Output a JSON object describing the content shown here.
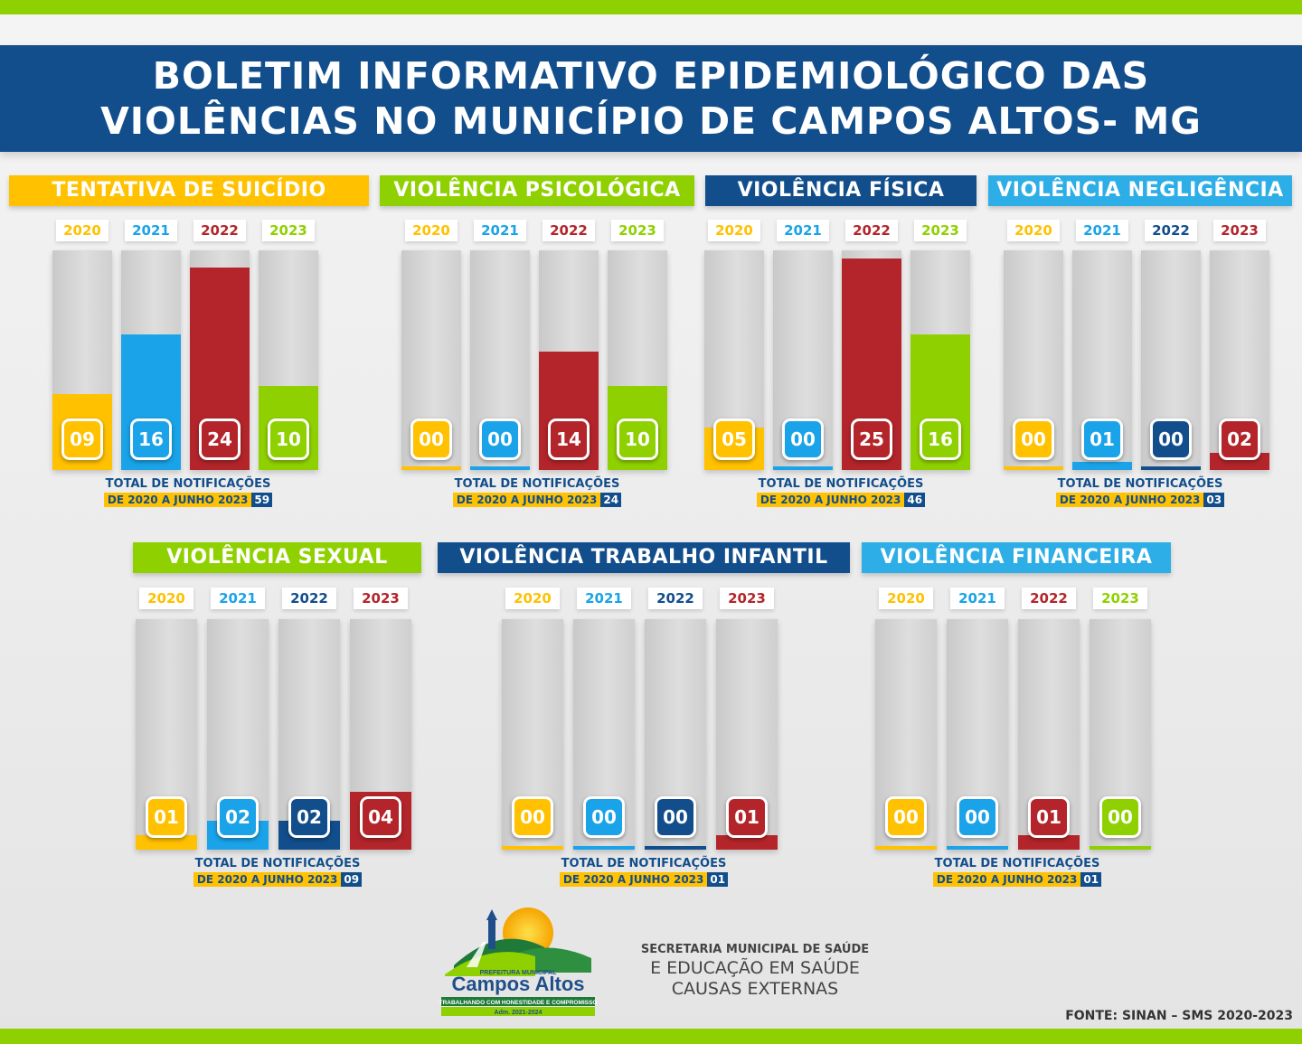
{
  "header": {
    "line1": "BOLETIM INFORMATIVO EPIDEMIOLÓGICO DAS",
    "line2": "VIOLÊNCIAS NO MUNICÍPIO DE CAMPOS ALTOS- MG"
  },
  "colors": {
    "yellow": "#ffc100",
    "blue": "#1aa3e8",
    "red": "#b3252a",
    "green": "#8fd100",
    "navy": "#124e8c",
    "light_blue": "#2eaee6"
  },
  "chart_data": [
    {
      "type": "bar",
      "title": "TENTATIVA DE SUICÍDIO",
      "title_color": "#ffc100",
      "categories": [
        "2020",
        "2021",
        "2022",
        "2023"
      ],
      "category_colors": [
        "#ffc100",
        "#1aa3e8",
        "#b3252a",
        "#8fd100"
      ],
      "values": [
        9,
        16,
        24,
        10
      ],
      "labels": [
        "09",
        "16",
        "24",
        "10"
      ],
      "ylim": [
        0,
        26
      ],
      "total_text": "TOTAL DE NOTIFICAÇÕES",
      "range_text": "DE 2020 A JUNHO 2023",
      "total": "59"
    },
    {
      "type": "bar",
      "title": "VIOLÊNCIA PSICOLÓGICA",
      "title_color": "#8fd100",
      "categories": [
        "2020",
        "2021",
        "2022",
        "2023"
      ],
      "category_colors": [
        "#ffc100",
        "#1aa3e8",
        "#b3252a",
        "#8fd100"
      ],
      "values": [
        0,
        0,
        14,
        10
      ],
      "labels": [
        "00",
        "00",
        "14",
        "10"
      ],
      "ylim": [
        0,
        26
      ],
      "total_text": "TOTAL DE NOTIFICAÇÕES",
      "range_text": "DE 2020 A JUNHO 2023",
      "total": "24"
    },
    {
      "type": "bar",
      "title": "VIOLÊNCIA FÍSICA",
      "title_color": "#124e8c",
      "categories": [
        "2020",
        "2021",
        "2022",
        "2023"
      ],
      "category_colors": [
        "#ffc100",
        "#1aa3e8",
        "#b3252a",
        "#8fd100"
      ],
      "values": [
        5,
        0,
        25,
        16
      ],
      "labels": [
        "05",
        "00",
        "25",
        "16"
      ],
      "ylim": [
        0,
        26
      ],
      "total_text": "TOTAL DE NOTIFICAÇÕES",
      "range_text": "DE 2020 A JUNHO 2023",
      "total": "46"
    },
    {
      "type": "bar",
      "title": "VIOLÊNCIA NEGLIGÊNCIA",
      "title_color": "#2eaee6",
      "categories": [
        "2020",
        "2021",
        "2022",
        "2023"
      ],
      "category_colors": [
        "#ffc100",
        "#1aa3e8",
        "#124e8c",
        "#b3252a"
      ],
      "values": [
        0,
        1,
        0,
        2
      ],
      "labels": [
        "00",
        "01",
        "00",
        "02"
      ],
      "ylim": [
        0,
        26
      ],
      "total_text": "TOTAL DE NOTIFICAÇÕES",
      "range_text": "DE 2020 A JUNHO 2023",
      "total": "03"
    },
    {
      "type": "bar",
      "title": "VIOLÊNCIA SEXUAL",
      "title_color": "#8fd100",
      "categories": [
        "2020",
        "2021",
        "2022",
        "2023"
      ],
      "category_colors": [
        "#ffc100",
        "#1aa3e8",
        "#124e8c",
        "#b3252a"
      ],
      "values": [
        1,
        2,
        2,
        4
      ],
      "labels": [
        "01",
        "02",
        "02",
        "04"
      ],
      "ylim": [
        0,
        16
      ],
      "total_text": "TOTAL DE NOTIFICAÇÕES",
      "range_text": "DE 2020 A JUNHO 2023",
      "total": "09"
    },
    {
      "type": "bar",
      "title": "VIOLÊNCIA TRABALHO INFANTIL",
      "title_color": "#124e8c",
      "categories": [
        "2020",
        "2021",
        "2022",
        "2023"
      ],
      "category_colors": [
        "#ffc100",
        "#1aa3e8",
        "#124e8c",
        "#b3252a"
      ],
      "values": [
        0,
        0,
        0,
        1
      ],
      "labels": [
        "00",
        "00",
        "00",
        "01"
      ],
      "ylim": [
        0,
        16
      ],
      "total_text": "TOTAL DE NOTIFICAÇÕES",
      "range_text": "DE 2020 A JUNHO 2023",
      "total": "01"
    },
    {
      "type": "bar",
      "title": "VIOLÊNCIA FINANCEIRA",
      "title_color": "#2eaee6",
      "categories": [
        "2020",
        "2021",
        "2022",
        "2023"
      ],
      "category_colors": [
        "#ffc100",
        "#1aa3e8",
        "#b3252a",
        "#8fd100"
      ],
      "values": [
        0,
        0,
        1,
        0
      ],
      "labels": [
        "00",
        "00",
        "01",
        "00"
      ],
      "ylim": [
        0,
        16
      ],
      "total_text": "TOTAL DE NOTIFICAÇÕES",
      "range_text": "DE 2020 A JUNHO 2023",
      "total": "01"
    }
  ],
  "logo": {
    "top_text": "PREFEITURA MUNICIPAL",
    "name": "Campos Altos",
    "slogan": "TRABALHANDO COM HONESTIDADE E COMPROMISSO",
    "term": "Adm. 2021-2024"
  },
  "secretariat": {
    "line1": "SECRETARIA MUNICIPAL DE SAÚDE",
    "line2": "E EDUCAÇÃO EM SAÚDE",
    "line3": "CAUSAS EXTERNAS"
  },
  "source": "FONTE: SINAN – SMS 2020-2023"
}
